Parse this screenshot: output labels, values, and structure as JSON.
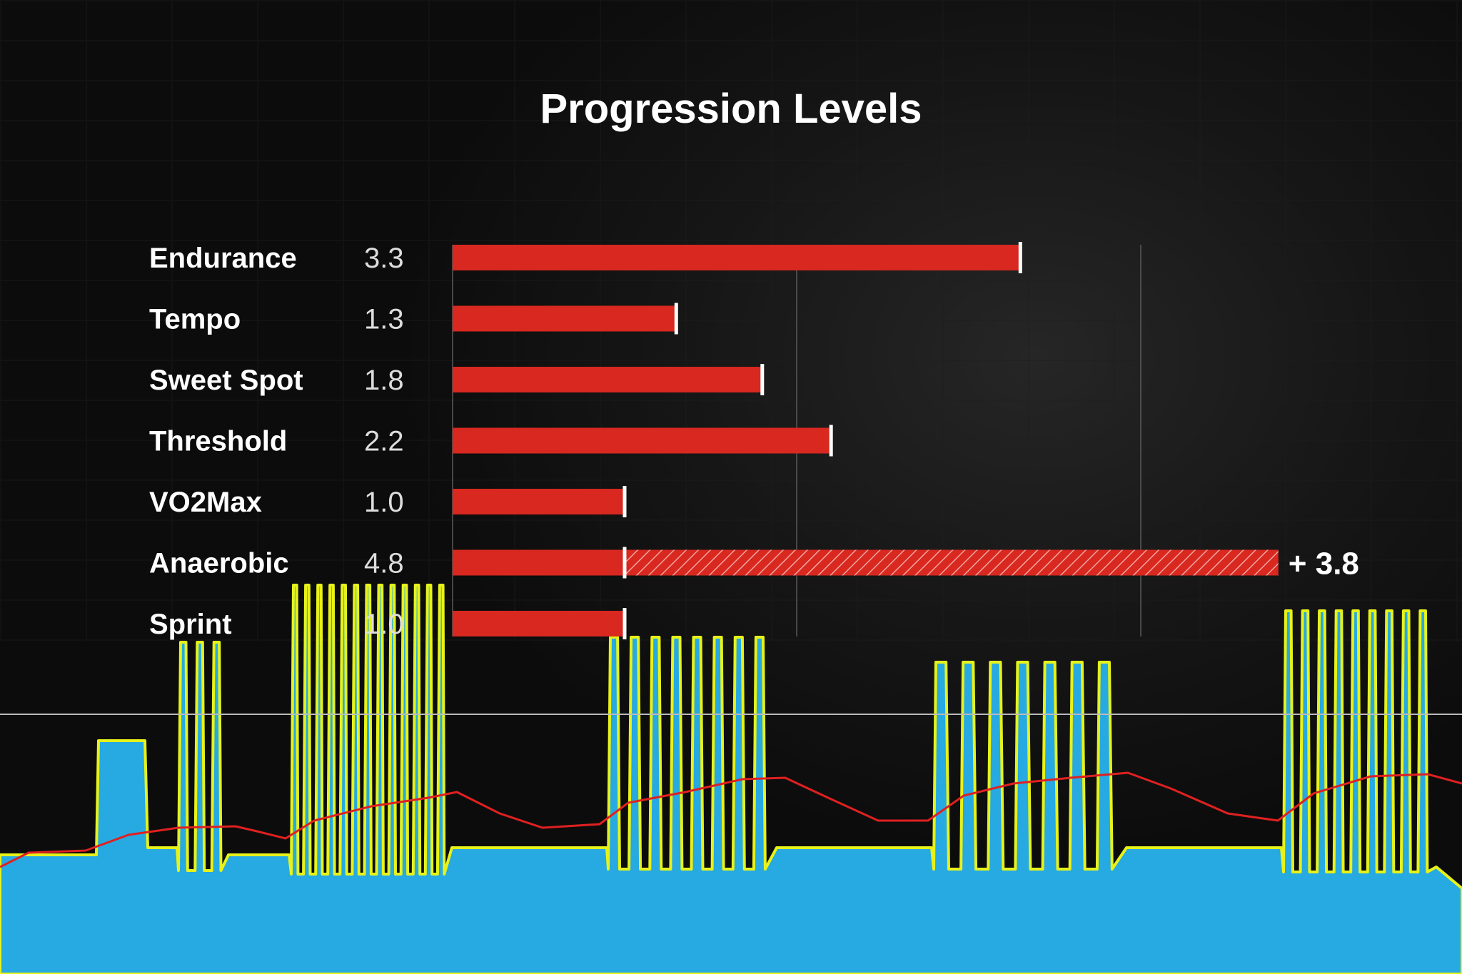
{
  "chart_data": {
    "type": "bar",
    "title": "Progression Levels",
    "categories": [
      "Endurance",
      "Tempo",
      "Sweet Spot",
      "Threshold",
      "VO2Max",
      "Anaerobic",
      "Sprint"
    ],
    "values": [
      3.3,
      1.3,
      1.8,
      2.2,
      1.0,
      4.8,
      1.0
    ],
    "value_labels": [
      "3.3",
      "1.3",
      "1.8",
      "2.2",
      "1.0",
      "4.8",
      "1.0"
    ],
    "increase": {
      "category": "Anaerobic",
      "from": 1.0,
      "to": 4.8,
      "label": "+ 3.8"
    },
    "xlim": [
      0,
      10
    ],
    "grid": true,
    "bar_color": "#d8281f",
    "marker_color": "#ffffff",
    "background_workout_profile": {
      "area_color": "#27a9e1",
      "outline_color": "#e6f21a",
      "trace_color": "#e02020",
      "reference_line_color": "#bbbbbb"
    }
  }
}
